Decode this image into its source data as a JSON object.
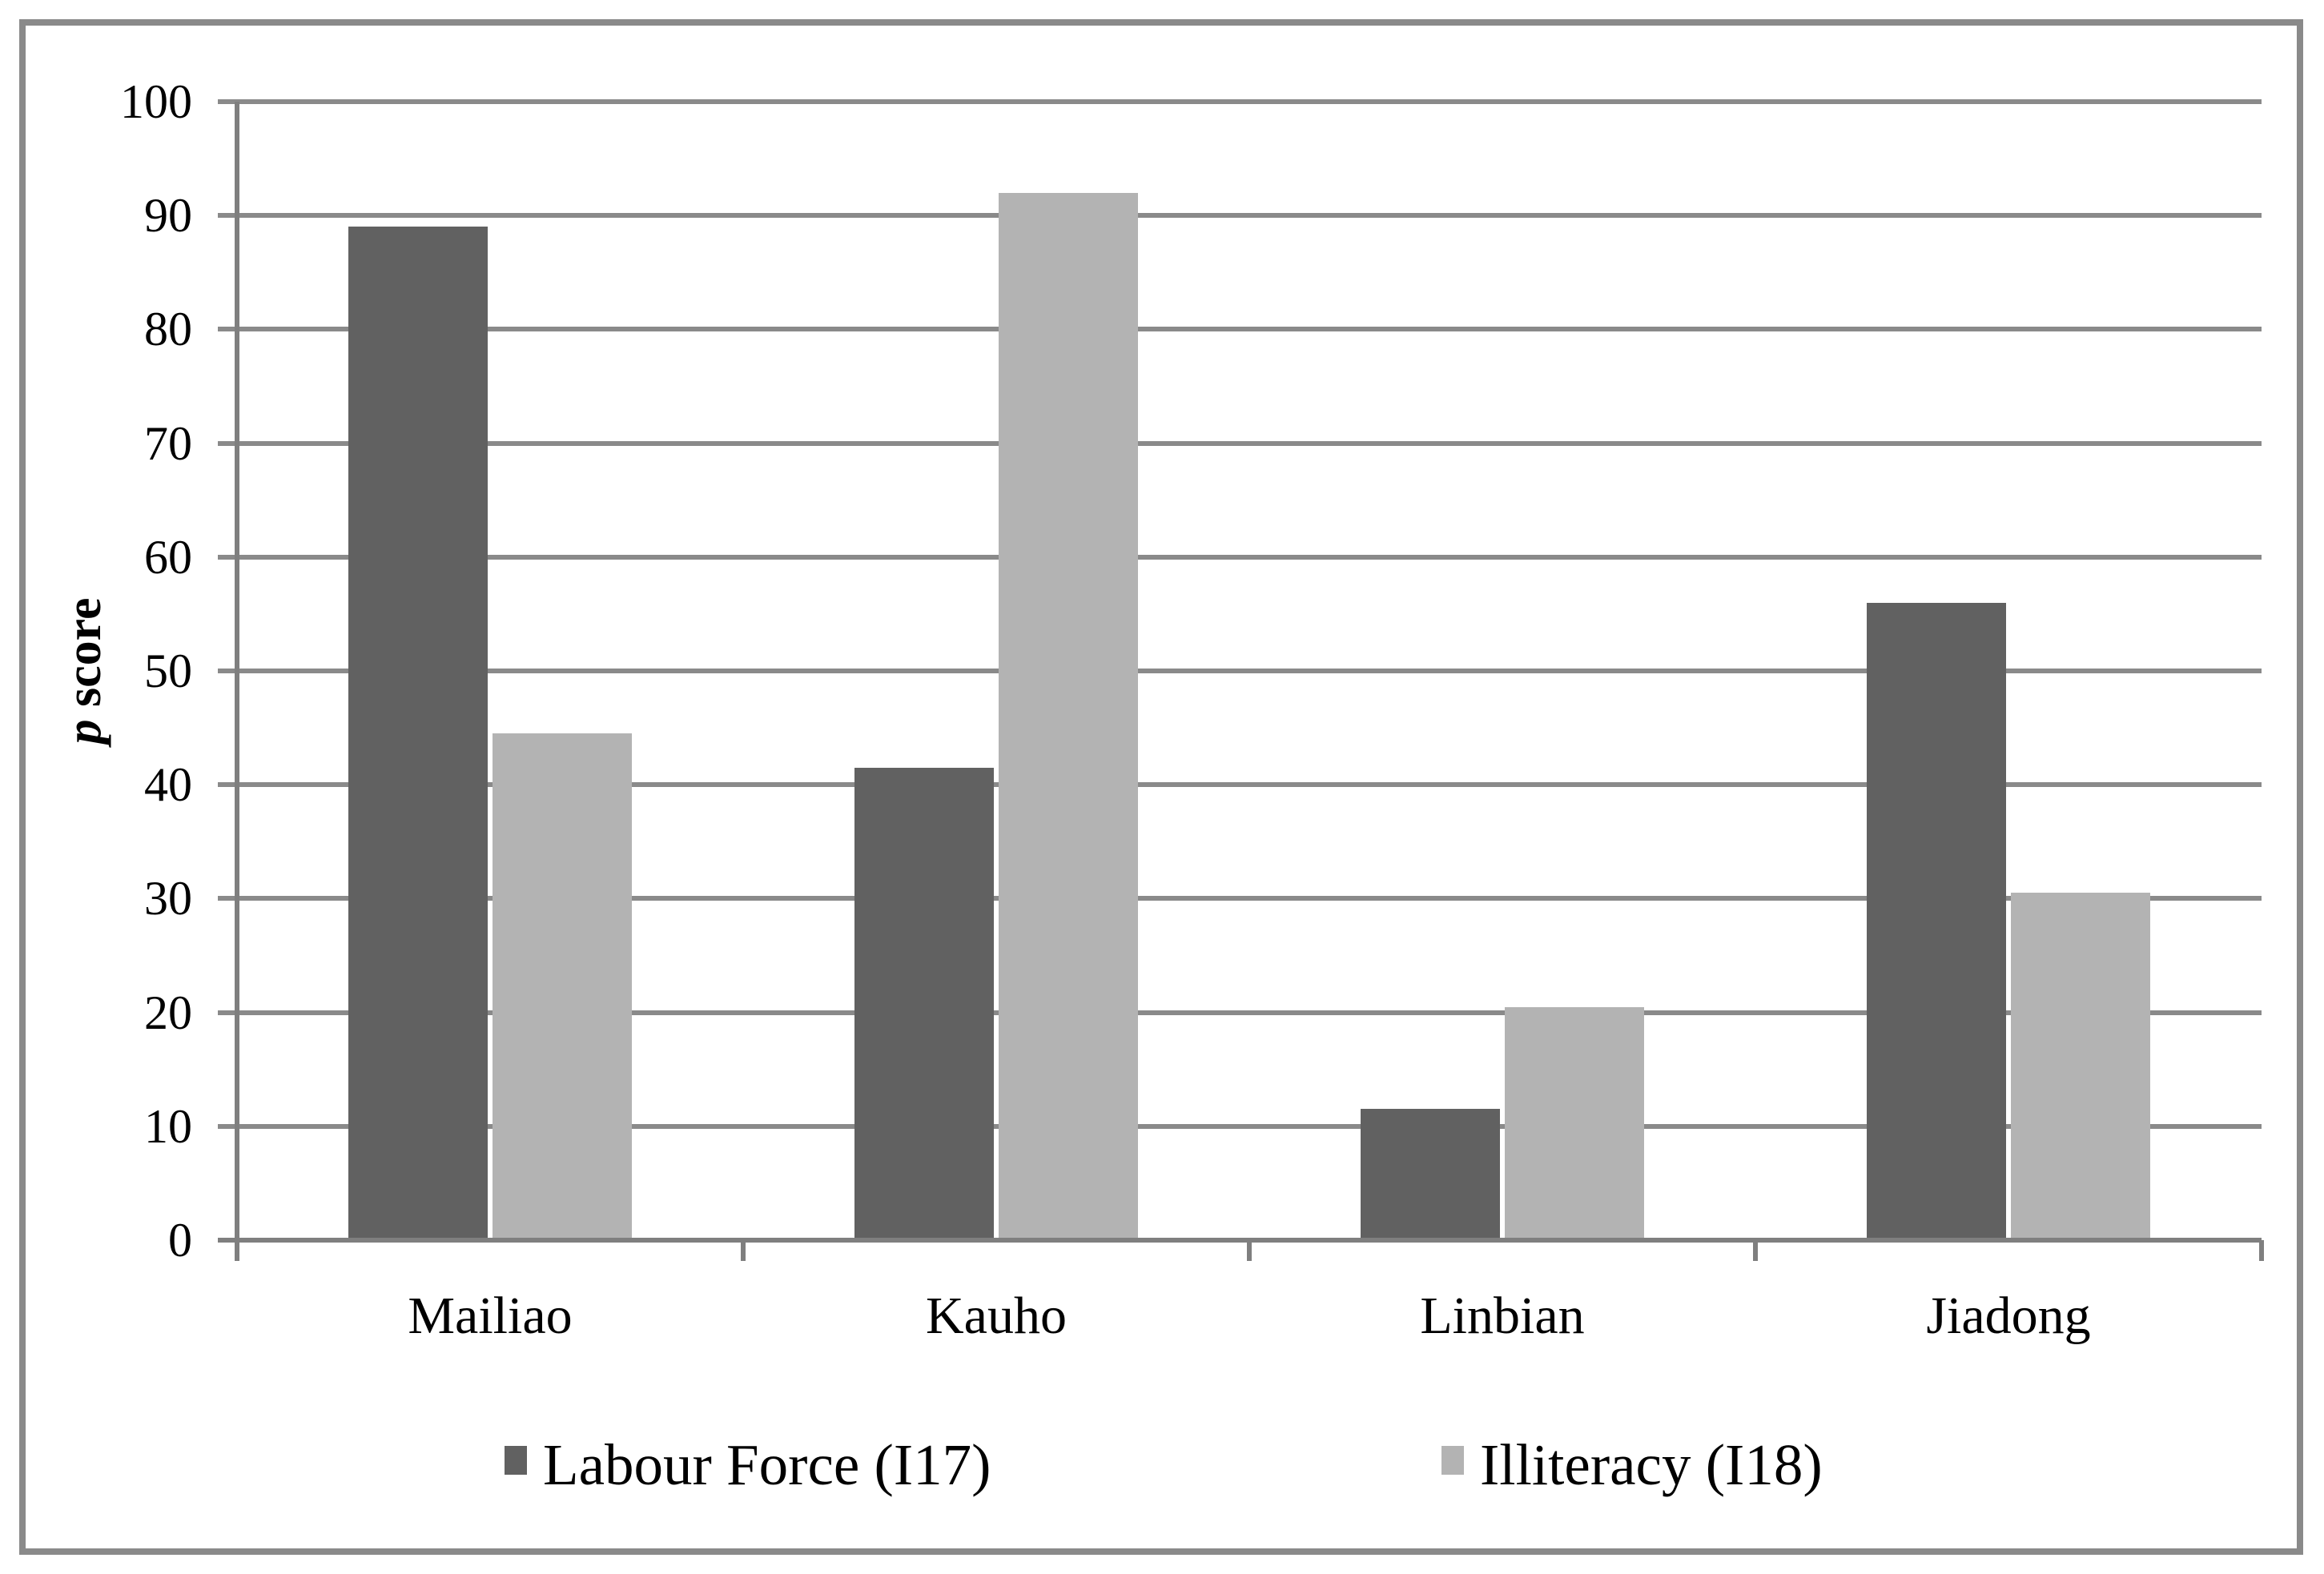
{
  "chart_data": {
    "type": "bar",
    "title": "",
    "categories": [
      "Mailiao",
      "Kauho",
      "Linbian",
      "Jiadong"
    ],
    "series": [
      {
        "name": "Labour Force (I17)",
        "color": "#616161",
        "values": [
          89,
          41.5,
          11.5,
          56
        ]
      },
      {
        "name": "Illiteracy (I18)",
        "color": "#b3b3b3",
        "values": [
          44.5,
          92,
          20.5,
          30.5
        ]
      }
    ],
    "xlabel": "",
    "ylabel": "p score",
    "ylim": [
      0,
      100
    ],
    "yticks": [
      0,
      10,
      20,
      30,
      40,
      50,
      60,
      70,
      80,
      90,
      100
    ],
    "grid": "horizontal",
    "legend_position": "bottom"
  },
  "axis_title": {
    "italic_part": "p",
    "regular_part": "score"
  },
  "colors": {
    "bar_dark": "#616161",
    "bar_light": "#b3b3b3",
    "gridline": "#8a8a8a",
    "axis": "#7f7f7f",
    "figure_border": "#8a8a8a",
    "background": "#ffffff",
    "text": "#000000"
  }
}
